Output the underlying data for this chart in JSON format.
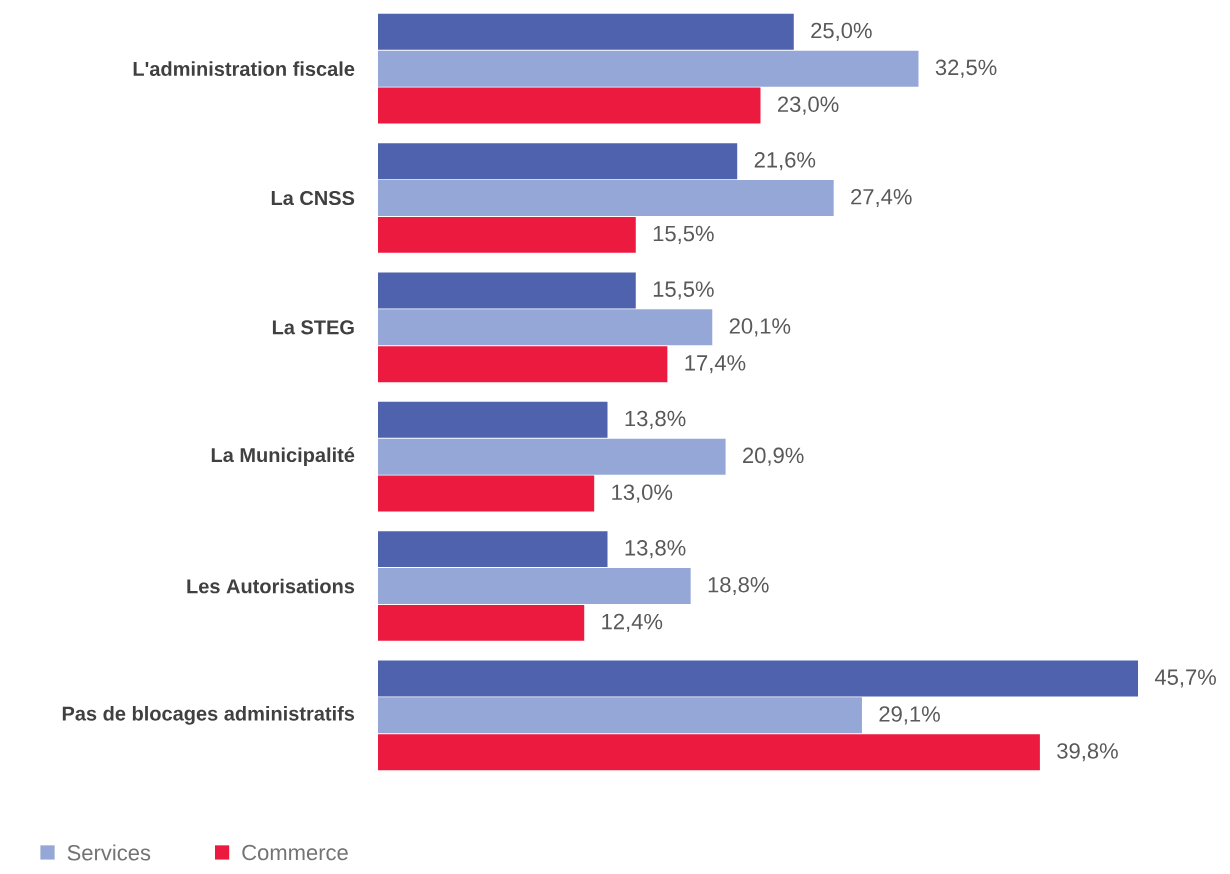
{
  "chart_data": {
    "type": "bar",
    "orientation": "horizontal",
    "legend": "bottom left",
    "categories": [
      "L'administration fiscale",
      "La CNSS",
      "La STEG",
      "La Municipalité",
      "Les Autorisations",
      "Pas de blocages administratifs"
    ],
    "series": [
      {
        "color": "#4f62ae",
        "values": [
          25.0,
          21.6,
          15.5,
          13.8,
          13.8,
          45.7
        ],
        "value_labels": [
          "25,0%",
          "21,6%",
          "15,5%",
          "13,8%",
          "13,8%",
          "45,7%"
        ]
      },
      {
        "name": "Services",
        "color": "#95a7d6",
        "values": [
          32.5,
          27.4,
          20.1,
          20.9,
          18.8,
          29.1
        ],
        "value_labels": [
          "32,5%",
          "27,4%",
          "20,1%",
          "20,9%",
          "18,8%",
          "29,1%"
        ]
      },
      {
        "name": "Commerce",
        "color": "#ec1a3f",
        "values": [
          23.0,
          15.5,
          17.4,
          13.0,
          12.4,
          39.8
        ],
        "value_labels": [
          "23,0%",
          "15,5%",
          "17,4%",
          "13,0%",
          "12,4%",
          "39,8%"
        ]
      }
    ]
  }
}
